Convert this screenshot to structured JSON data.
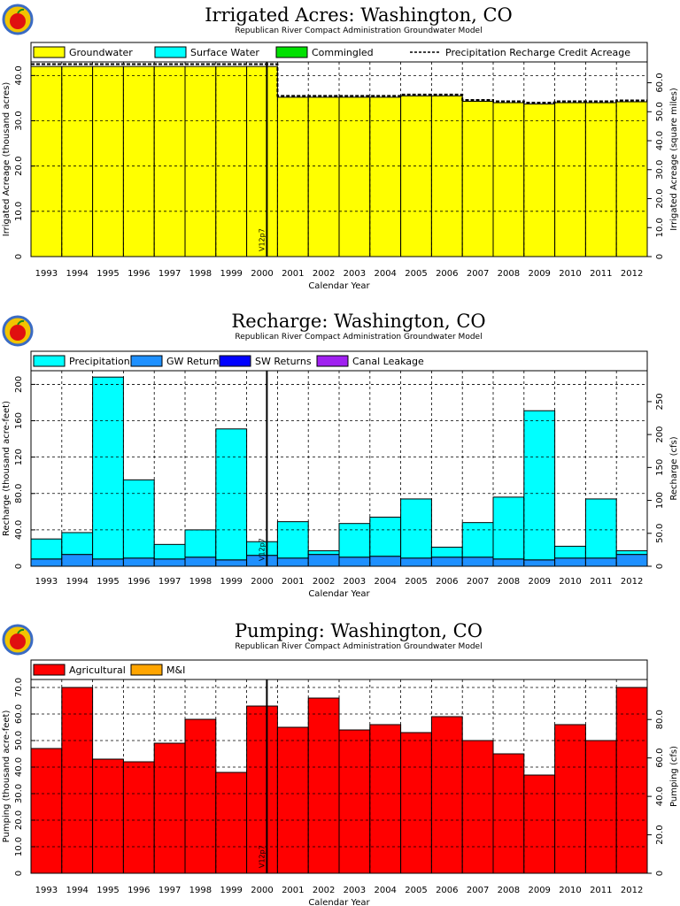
{
  "chart_data": [
    {
      "type": "bar",
      "stacked": true,
      "title": "Irrigated Acres: Washington, CO",
      "subtitle": "Republican River Compact Administration Groundwater Model",
      "xlabel": "Calendar Year",
      "ylabel": "Irrigated Acreage (thousand acres)",
      "y2label": "Irrigated Acreage (square miles)",
      "categories": [
        "1993",
        "1994",
        "1995",
        "1996",
        "1997",
        "1998",
        "1999",
        "2000",
        "2001",
        "2002",
        "2003",
        "2004",
        "2005",
        "2006",
        "2007",
        "2008",
        "2009",
        "2010",
        "2011",
        "2012"
      ],
      "ylim": [
        0,
        43
      ],
      "yticks": [
        0,
        10.0,
        20.0,
        30.0,
        40.0
      ],
      "ytick_labels": [
        "0",
        "10.0",
        "20.0",
        "30.0",
        "40.0"
      ],
      "y2_factor": 1.5625,
      "y2ticks": [
        0,
        10.0,
        20.0,
        30.0,
        40.0,
        50.0,
        60.0
      ],
      "y2tick_labels": [
        "0",
        "10.0",
        "20.0",
        "30.0",
        "40.0",
        "50.0",
        "60.0"
      ],
      "grid": true,
      "legend_position": "top",
      "series": [
        {
          "name": "Groundwater",
          "color": "#ffff00",
          "values": [
            42.0,
            42.0,
            42.0,
            42.0,
            42.0,
            42.0,
            42.0,
            42.0,
            35.2,
            35.2,
            35.2,
            35.2,
            35.5,
            35.5,
            34.3,
            34.0,
            33.7,
            34.0,
            34.0,
            34.2
          ]
        },
        {
          "name": "Surface Water",
          "color": "#00ffff",
          "values": [
            0,
            0,
            0,
            0,
            0,
            0,
            0,
            0,
            0,
            0,
            0,
            0,
            0,
            0,
            0,
            0,
            0,
            0,
            0,
            0
          ]
        },
        {
          "name": "Commingled",
          "color": "#00e000",
          "values": [
            0,
            0,
            0,
            0,
            0,
            0,
            0,
            0,
            0,
            0,
            0,
            0,
            0,
            0,
            0,
            0,
            0,
            0,
            0,
            0
          ]
        }
      ],
      "line": {
        "name": "Precipitation Recharge Credit Acreage",
        "style": "dashed",
        "values": [
          42.5,
          42.5,
          42.5,
          42.5,
          42.5,
          42.5,
          42.5,
          42.5,
          35.5,
          35.5,
          35.5,
          35.5,
          35.8,
          35.8,
          34.6,
          34.3,
          34.0,
          34.3,
          34.3,
          34.5
        ]
      },
      "marker": {
        "label": "V12p7",
        "x_index": 8
      }
    },
    {
      "type": "bar",
      "stacked": true,
      "title": "Recharge: Washington, CO",
      "subtitle": "Republican River Compact Administration Groundwater Model",
      "xlabel": "Calendar Year",
      "ylabel": "Recharge (thousand acre-feet)",
      "y2label": "Recharge (cfs)",
      "categories": [
        "1993",
        "1994",
        "1995",
        "1996",
        "1997",
        "1998",
        "1999",
        "2000",
        "2001",
        "2002",
        "2003",
        "2004",
        "2005",
        "2006",
        "2007",
        "2008",
        "2009",
        "2010",
        "2011",
        "2012"
      ],
      "ylim": [
        0,
        215
      ],
      "yticks": [
        0,
        40.0,
        80.0,
        120,
        160,
        200
      ],
      "ytick_labels": [
        "0",
        "40.0",
        "80.0",
        "120",
        "160",
        "200"
      ],
      "y2_factor": 1.381,
      "y2ticks": [
        0,
        50.0,
        100,
        150,
        200,
        250
      ],
      "y2tick_labels": [
        "0",
        "50.0",
        "100",
        "150",
        "200",
        "250"
      ],
      "grid": true,
      "legend_position": "top",
      "series": [
        {
          "name": "GW Returns",
          "color": "#1e90ff",
          "values": [
            8,
            13,
            8,
            9,
            8,
            10,
            7,
            12,
            9,
            13,
            10,
            11,
            9,
            10,
            10,
            8,
            7,
            9,
            9,
            13
          ]
        },
        {
          "name": "SW Returns",
          "color": "#0000ff",
          "values": [
            0,
            0,
            0,
            0,
            0,
            0,
            0,
            0,
            0,
            0,
            0,
            0,
            0,
            0,
            0,
            0,
            0,
            0,
            0,
            0
          ]
        },
        {
          "name": "Canal Leakage",
          "color": "#a020f0",
          "values": [
            0,
            0,
            0,
            0,
            0,
            0,
            0,
            0,
            0,
            0,
            0,
            0,
            0,
            0,
            0,
            0,
            0,
            0,
            0,
            0
          ]
        },
        {
          "name": "Precipitation",
          "color": "#00ffff",
          "values": [
            22,
            24,
            200,
            86,
            16,
            30,
            144,
            15,
            40,
            4,
            37,
            43,
            65,
            11,
            38,
            68,
            164,
            13,
            65,
            4
          ]
        }
      ],
      "marker": {
        "label": "V12p7",
        "x_index": 8
      }
    },
    {
      "type": "bar",
      "stacked": true,
      "title": "Pumping: Washington, CO",
      "subtitle": "Republican River Compact Administration Groundwater Model",
      "xlabel": "Calendar Year",
      "ylabel": "Pumping (thousand acre-feet)",
      "y2label": "Pumping (cfs)",
      "categories": [
        "1993",
        "1994",
        "1995",
        "1996",
        "1997",
        "1998",
        "1999",
        "2000",
        "2001",
        "2002",
        "2003",
        "2004",
        "2005",
        "2006",
        "2007",
        "2008",
        "2009",
        "2010",
        "2011",
        "2012"
      ],
      "ylim": [
        0,
        73
      ],
      "yticks": [
        0,
        10.0,
        20.0,
        30.0,
        40.0,
        50.0,
        60.0,
        70.0
      ],
      "ytick_labels": [
        "0",
        "10.0",
        "20.0",
        "30.0",
        "40.0",
        "50.0",
        "60.0",
        "70.0"
      ],
      "y2_factor": 1.381,
      "y2ticks": [
        0,
        20.0,
        40.0,
        60.0,
        80.0
      ],
      "y2tick_labels": [
        "0",
        "20.0",
        "40.0",
        "60.0",
        "80.0"
      ],
      "grid": true,
      "legend_position": "top",
      "series": [
        {
          "name": "Agricultural",
          "color": "#ff0000",
          "values": [
            47,
            70,
            43,
            42,
            49,
            58,
            38,
            63,
            55,
            66,
            54,
            56,
            53,
            59,
            50,
            45,
            37,
            56,
            50,
            70
          ]
        },
        {
          "name": "M&I",
          "color": "#ffa500",
          "values": [
            0,
            0,
            0,
            0,
            0,
            0,
            0,
            0,
            0,
            0,
            0,
            0,
            0,
            0,
            0,
            0,
            0,
            0,
            0,
            0
          ]
        }
      ],
      "marker": {
        "label": "V12p7",
        "x_index": 8
      }
    }
  ]
}
